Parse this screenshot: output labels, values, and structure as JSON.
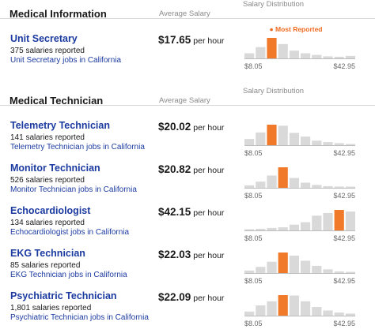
{
  "dist_min": "$8.05",
  "dist_max": "$42.95",
  "most_reported_label": "Most Reported",
  "colors": {
    "highlight": "#f07a2a",
    "bar": "#d9d9d9",
    "link": "#1b3aa0"
  },
  "sections": [
    {
      "title": "Medical Information",
      "avg_header": "Average Salary",
      "dist_header": "Salary Distribution",
      "jobs": [
        {
          "title": "Unit Secretary",
          "count": "375 salaries reported",
          "link": "Unit Secretary jobs in California",
          "salary": "$17.65",
          "unit": "per hour",
          "show_most_reported": true,
          "distribution": [
            0.25,
            0.55,
            1.0,
            0.7,
            0.38,
            0.25,
            0.17,
            0.1,
            0.08,
            0.12
          ],
          "highlight": 2
        }
      ]
    },
    {
      "title": "Medical Technician",
      "avg_header": "Average Salary",
      "dist_header": "Salary Distribution",
      "jobs": [
        {
          "title": "Telemetry Technician",
          "count": "141 salaries reported",
          "link": "Telemetry Technician jobs in California",
          "salary": "$20.02",
          "unit": "per hour",
          "show_most_reported": false,
          "distribution": [
            0.3,
            0.62,
            1.0,
            0.95,
            0.6,
            0.42,
            0.22,
            0.15,
            0.1,
            0.06
          ],
          "highlight": 2
        },
        {
          "title": "Monitor Technician",
          "count": "526 salaries reported",
          "link": "Monitor Technician jobs in California",
          "salary": "$20.82",
          "unit": "per hour",
          "show_most_reported": false,
          "distribution": [
            0.12,
            0.3,
            0.6,
            1.0,
            0.48,
            0.25,
            0.14,
            0.08,
            0.06,
            0.05
          ],
          "highlight": 3
        },
        {
          "title": "Echocardiologist",
          "count": "134 salaries reported",
          "link": "Echocardiologist jobs in California",
          "salary": "$42.15",
          "unit": "per hour",
          "show_most_reported": false,
          "distribution": [
            0.05,
            0.08,
            0.12,
            0.15,
            0.28,
            0.4,
            0.72,
            0.85,
            1.0,
            0.92
          ],
          "highlight": 8
        },
        {
          "title": "EKG Technician",
          "count": "85 salaries reported",
          "link": "EKG Technician jobs in California",
          "salary": "$22.03",
          "unit": "per hour",
          "show_most_reported": false,
          "distribution": [
            0.12,
            0.3,
            0.55,
            1.0,
            0.85,
            0.6,
            0.35,
            0.18,
            0.08,
            0.05
          ],
          "highlight": 3
        },
        {
          "title": "Psychiatric Technician",
          "count": "1,801 salaries reported",
          "link": "Psychiatric Technician jobs in California",
          "salary": "$22.09",
          "unit": "per hour",
          "show_most_reported": false,
          "distribution": [
            0.2,
            0.5,
            0.7,
            1.0,
            0.98,
            0.7,
            0.42,
            0.25,
            0.15,
            0.1
          ],
          "highlight": 3
        }
      ]
    }
  ]
}
